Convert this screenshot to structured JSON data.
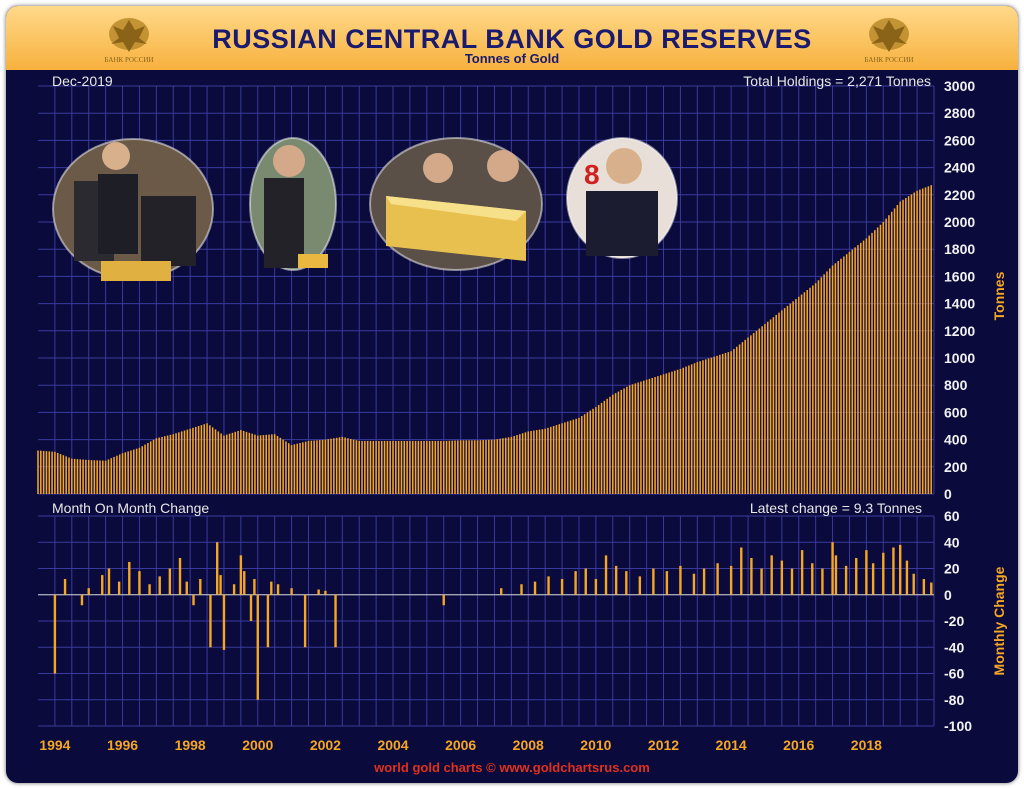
{
  "header": {
    "title": "RUSSIAN CENTRAL BANK GOLD RESERVES",
    "subtitle": "Tonnes of Gold",
    "emblem_text": "БАНК РОССИИ"
  },
  "top_panel": {
    "date_label": "Dec-2019",
    "total_label": "Total Holdings = 2,271 Tonnes",
    "y_axis_title": "Tonnes",
    "y_ticks": [
      "0",
      "200",
      "400",
      "600",
      "800",
      "1000",
      "1200",
      "1400",
      "1600",
      "1800",
      "2000",
      "2200",
      "2400",
      "2600",
      "2800",
      "3000"
    ]
  },
  "bottom_panel": {
    "title": "Month On Month Change",
    "latest_label": "Latest change = 9.3 Tonnes",
    "y_axis_title": "Monthly Change",
    "y_ticks": [
      "-100",
      "-80",
      "-60",
      "-40",
      "-20",
      "0",
      "20",
      "40",
      "60"
    ]
  },
  "x_ticks": [
    "1994",
    "1996",
    "1998",
    "2000",
    "2002",
    "2004",
    "2006",
    "2008",
    "2010",
    "2012",
    "2014",
    "2016",
    "2018"
  ],
  "credit": "world gold charts © www.goldchartsrus.com",
  "colors": {
    "background": "#0a0a3c",
    "grid": "#3a3a9e",
    "bar": "#f5a623",
    "banner": "#f7b13e",
    "title": "#1a1a6e",
    "credit": "#e0301e"
  },
  "photos": [
    {
      "name": "photo-putin-gold-bars",
      "description_icon": "person-with-gold-bars"
    },
    {
      "name": "photo-putin-gold-bar",
      "description_icon": "person-holding-gold"
    },
    {
      "name": "photo-gold-bar-closeup",
      "description_icon": "gold-bar"
    },
    {
      "name": "photo-medvedev",
      "description_icon": "person-portrait"
    }
  ],
  "chart_data": [
    {
      "type": "bar",
      "x_unit": "year",
      "x_range": [
        1993.5,
        2020
      ],
      "ylim": [
        0,
        3000
      ],
      "ylabel": "Tonnes",
      "title": "",
      "series": [
        {
          "x": [
            1993.5,
            1994.0,
            1994.5,
            1995.0,
            1995.5,
            1996.0,
            1996.5,
            1997.0,
            1997.5,
            1998.0,
            1998.5,
            1999.0,
            1999.5,
            2000.0,
            2000.5,
            2001.0,
            2001.5,
            2002.0,
            2002.5,
            2003.0,
            2003.5,
            2004.0,
            2004.5,
            2005.0,
            2005.5,
            2006.0,
            2006.5,
            2007.0,
            2007.5,
            2008.0,
            2008.5,
            2009.0,
            2009.5,
            2010.0,
            2010.5,
            2011.0,
            2011.5,
            2012.0,
            2012.5,
            2013.0,
            2013.5,
            2014.0,
            2014.5,
            2015.0,
            2015.5,
            2016.0,
            2016.5,
            2017.0,
            2017.5,
            2018.0,
            2018.5,
            2019.0,
            2019.5,
            2019.92
          ],
          "values": [
            320,
            310,
            260,
            250,
            245,
            300,
            340,
            410,
            440,
            480,
            520,
            430,
            470,
            430,
            440,
            360,
            390,
            400,
            420,
            390,
            390,
            390,
            390,
            390,
            390,
            395,
            395,
            400,
            420,
            460,
            480,
            520,
            560,
            640,
            730,
            800,
            840,
            880,
            920,
            970,
            1010,
            1050,
            1150,
            1250,
            1350,
            1450,
            1550,
            1680,
            1780,
            1880,
            2000,
            2150,
            2230,
            2271
          ]
        }
      ]
    },
    {
      "type": "bar",
      "x_unit": "year",
      "x_range": [
        1993.5,
        2020
      ],
      "ylim": [
        -100,
        60
      ],
      "ylabel": "Monthly Change",
      "title": "Month On Month Change",
      "series": [
        {
          "x": [
            1994.0,
            1994.3,
            1994.8,
            1995.0,
            1995.4,
            1995.6,
            1995.9,
            1996.2,
            1996.5,
            1996.8,
            1997.1,
            1997.4,
            1997.7,
            1997.9,
            1998.1,
            1998.3,
            1998.6,
            1998.8,
            1998.9,
            1999.0,
            1999.3,
            1999.5,
            1999.6,
            1999.8,
            1999.9,
            2000.0,
            2000.3,
            2000.4,
            2000.6,
            2001.0,
            2001.4,
            2001.8,
            2002.0,
            2002.3,
            2005.5,
            2007.2,
            2007.8,
            2008.2,
            2008.6,
            2009.0,
            2009.4,
            2009.7,
            2010.0,
            2010.3,
            2010.6,
            2010.9,
            2011.3,
            2011.7,
            2012.1,
            2012.5,
            2012.9,
            2013.2,
            2013.6,
            2014.0,
            2014.3,
            2014.6,
            2014.9,
            2015.2,
            2015.5,
            2015.8,
            2016.1,
            2016.4,
            2016.7,
            2017.0,
            2017.1,
            2017.4,
            2017.7,
            2018.0,
            2018.2,
            2018.5,
            2018.8,
            2019.0,
            2019.2,
            2019.4,
            2019.7,
            2019.92
          ],
          "values": [
            -60,
            12,
            -8,
            5,
            15,
            20,
            10,
            25,
            18,
            8,
            14,
            20,
            28,
            10,
            -8,
            12,
            -40,
            40,
            15,
            -42,
            8,
            30,
            18,
            -20,
            12,
            -80,
            -40,
            10,
            8,
            5,
            -40,
            4,
            3,
            -40,
            -8,
            5,
            8,
            10,
            14,
            12,
            18,
            20,
            12,
            30,
            22,
            18,
            14,
            20,
            18,
            22,
            16,
            20,
            24,
            22,
            36,
            28,
            20,
            30,
            26,
            20,
            34,
            24,
            20,
            40,
            30,
            22,
            28,
            34,
            24,
            32,
            36,
            38,
            26,
            16,
            12,
            9.3
          ]
        }
      ]
    }
  ]
}
